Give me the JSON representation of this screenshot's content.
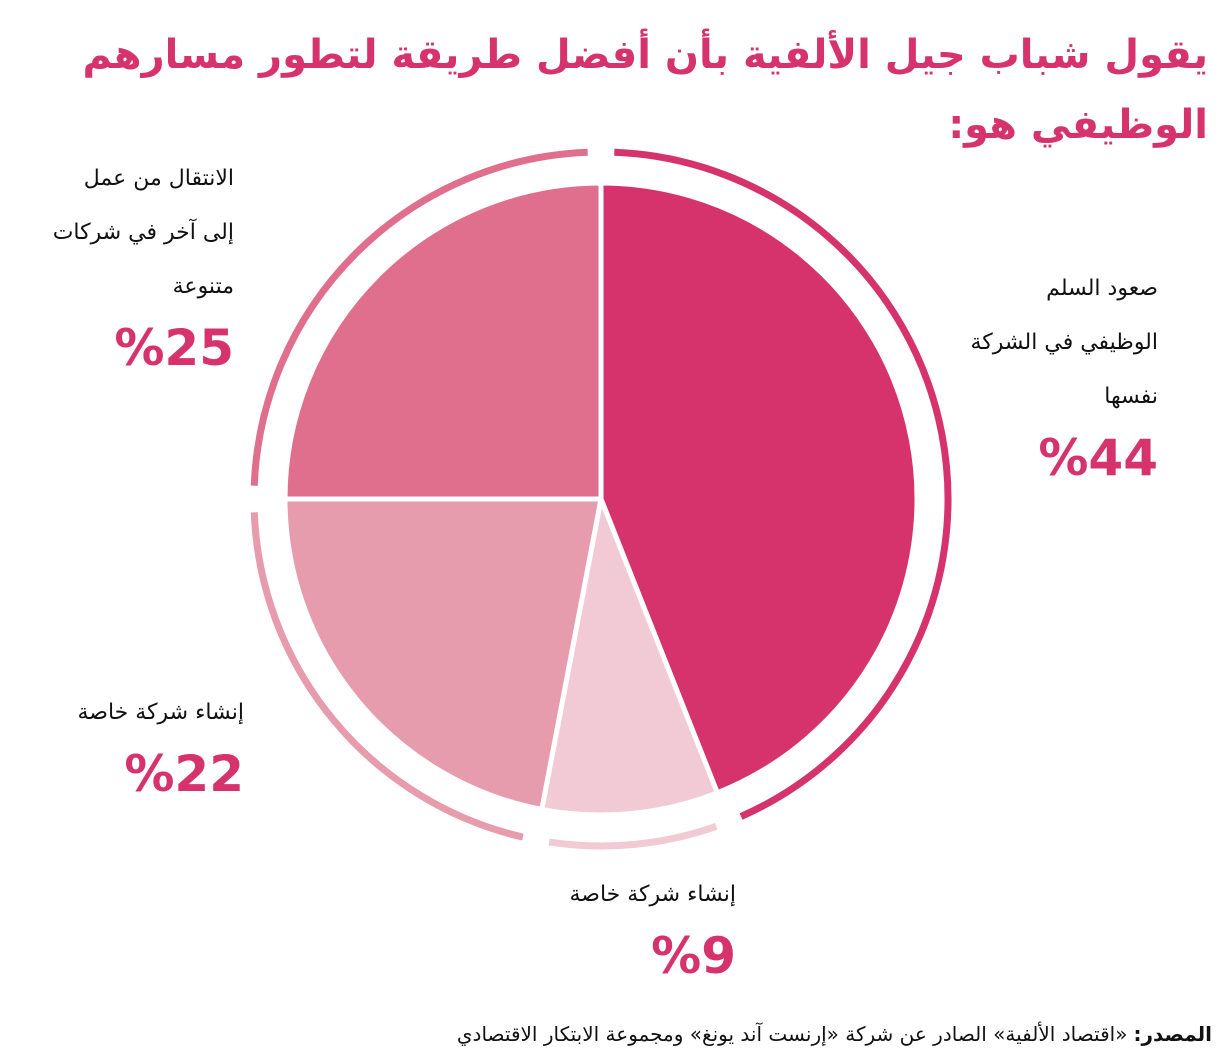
{
  "title": "يقول شباب جيل الألفية بأن أفضل طريقة لتطور مسارهم الوظيفي هو:",
  "chart_data": {
    "type": "pie",
    "start_angle_deg": 0,
    "direction": "clockwise",
    "slices": [
      {
        "label": "صعود السلم\nالوظيفي في الشركة\nنفسها",
        "value": 44,
        "display": "%44",
        "color": "#d6336c"
      },
      {
        "label": "إنشاء شركة خاصة",
        "value": 9,
        "display": "%9",
        "color": "#f2cad5"
      },
      {
        "label": "إنشاء شركة خاصة",
        "value": 22,
        "display": "%22",
        "color": "#e69cad"
      },
      {
        "label": "الانتقال من عمل\nإلى آخر في شركات\nمتنوعة",
        "value": 25,
        "display": "%25",
        "color": "#df6f8d"
      }
    ]
  },
  "source": {
    "label": "المصدر:",
    "text": "«اقتصاد الألفية» الصادر عن شركة «إرنست آند يونغ» ومجموعة الابتكار الاقتصادي"
  }
}
